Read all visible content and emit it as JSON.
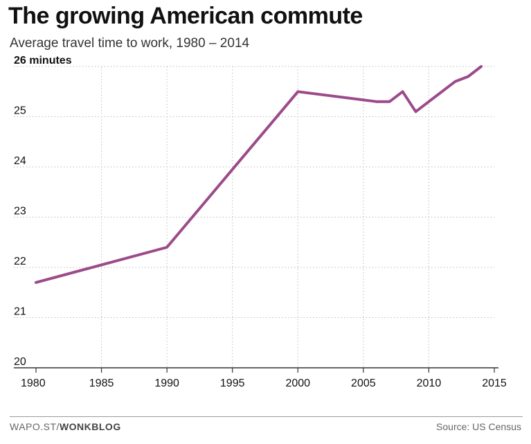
{
  "header": {
    "title": "The growing American commute",
    "subtitle": "Average travel time to work, 1980 – 2014"
  },
  "footer": {
    "site_prefix": "WAPO.ST/",
    "site_brand": "WONKBLOG",
    "source": "Source: US Census"
  },
  "colors": {
    "line": "#9c4b8a",
    "grid": "#bbbbbb",
    "axis": "#333333"
  },
  "chart_data": {
    "type": "line",
    "title": "The growing American commute",
    "subtitle": "Average travel time to work, 1980 – 2014",
    "xlabel": "",
    "ylabel": "",
    "xlim": [
      1980,
      2015
    ],
    "ylim": [
      20,
      26
    ],
    "x_ticks": [
      1980,
      1985,
      1990,
      1995,
      2000,
      2005,
      2010,
      2015
    ],
    "x_tick_labels": [
      "1980",
      "1985",
      "1990",
      "1995",
      "2000",
      "2005",
      "2010",
      "2015"
    ],
    "y_ticks": [
      20,
      21,
      22,
      23,
      24,
      25,
      26
    ],
    "y_tick_labels": [
      "20",
      "21",
      "22",
      "23",
      "24",
      "25",
      "26 minutes"
    ],
    "grid": true,
    "series": [
      {
        "name": "Average travel time to work",
        "x": [
          1980,
          1990,
          2000,
          2006,
          2007,
          2008,
          2009,
          2010,
          2011,
          2012,
          2013,
          2014
        ],
        "values": [
          21.7,
          22.4,
          25.5,
          25.3,
          25.3,
          25.5,
          25.1,
          25.3,
          25.5,
          25.7,
          25.8,
          26.0
        ]
      }
    ]
  }
}
